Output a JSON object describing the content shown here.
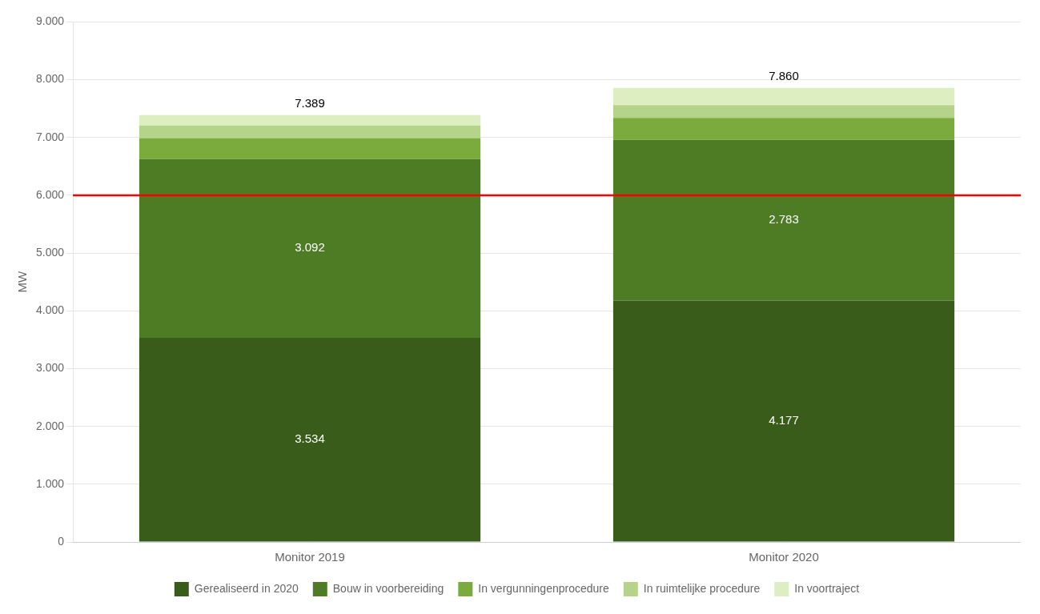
{
  "chart_data": {
    "type": "bar",
    "stacked": true,
    "categories": [
      "Monitor 2019",
      "Monitor 2020"
    ],
    "series": [
      {
        "name": "Gerealiseerd in 2020",
        "color": "#3a5c1a",
        "values": [
          3534,
          4177
        ],
        "data_labels": true,
        "value_labels": [
          "3.534",
          "4.177"
        ]
      },
      {
        "name": "Bouw in voorbereiding",
        "color": "#4e7c25",
        "values": [
          3092,
          2783
        ],
        "data_labels": true,
        "value_labels": [
          "3.092",
          "2.783"
        ]
      },
      {
        "name": "In vergunningenprocedure",
        "color": "#7aab3c",
        "values": [
          363,
          380
        ]
      },
      {
        "name": "In ruimtelijke procedure",
        "color": "#b5d48a",
        "values": [
          220,
          220
        ]
      },
      {
        "name": "In voortraject",
        "color": "#ddeec0",
        "values": [
          180,
          300
        ]
      }
    ],
    "totals": [
      7389,
      7860
    ],
    "total_labels": [
      "7.389",
      "7.860"
    ],
    "annotations": [
      {
        "type": "hline",
        "y": 6000,
        "color": "red"
      }
    ],
    "ylabel": "MW",
    "ylim": [
      0,
      9000
    ],
    "yticks": [
      0,
      {
        "value": 1000,
        "label": "1.000"
      },
      {
        "value": 2000,
        "label": "2.000"
      },
      {
        "value": 3000,
        "label": "3.000"
      },
      {
        "value": 4000,
        "label": "4.000"
      },
      {
        "value": 5000,
        "label": "5.000"
      },
      {
        "value": 6000,
        "label": "6.000"
      },
      {
        "value": 7000,
        "label": "7.000"
      },
      {
        "value": 8000,
        "label": "8.000"
      },
      {
        "value": 9000,
        "label": "9.000"
      }
    ],
    "grid": true,
    "legend": "bottom"
  }
}
